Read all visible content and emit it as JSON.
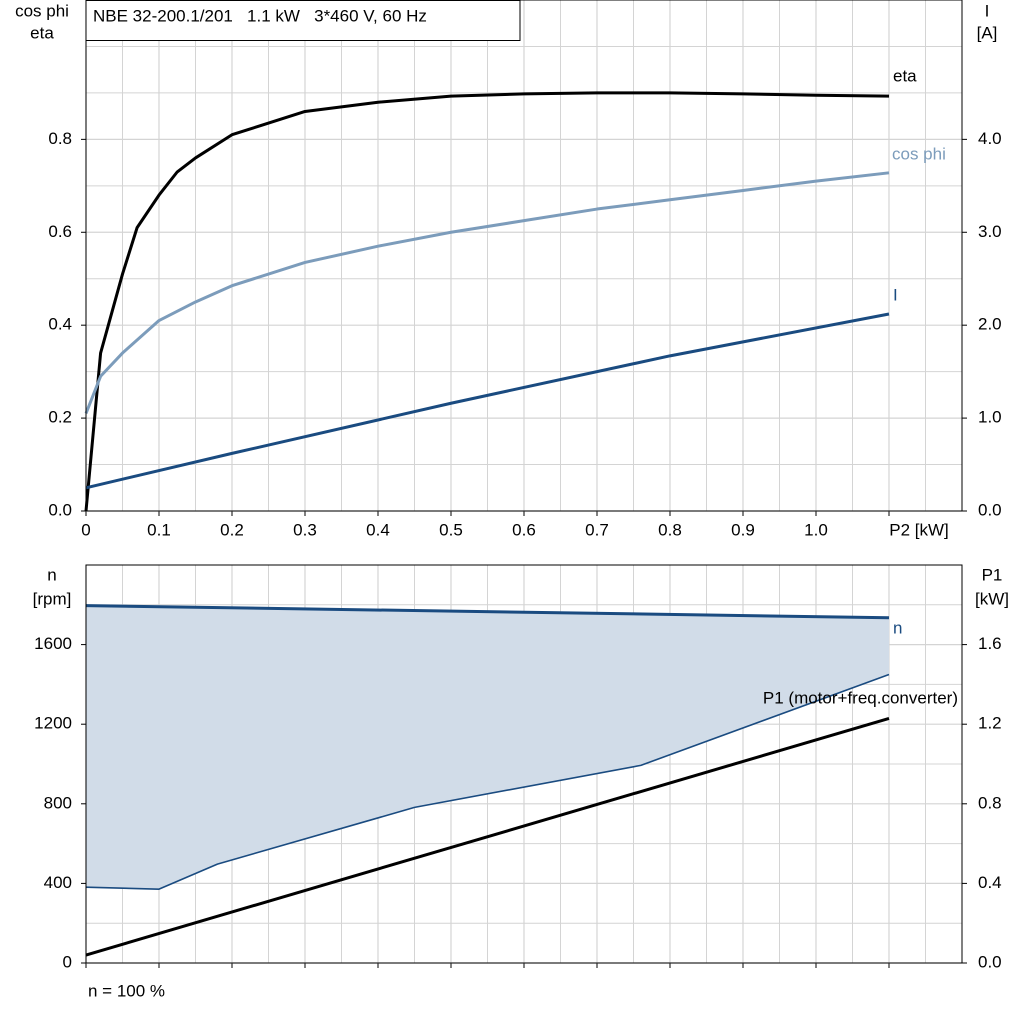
{
  "chart_data": [
    {
      "type": "line",
      "title": "NBE 32-200.1/201   1.1 kW   3*460 V, 60 Hz",
      "ylabel": [
        "cos phi",
        "eta"
      ],
      "y2label": [
        "I",
        "[A]"
      ],
      "xlim": [
        0,
        1.2
      ],
      "ylim": [
        0,
        1.1
      ],
      "y2lim": [
        0,
        5.5
      ],
      "xticks": [
        0,
        0.1,
        0.2,
        0.3,
        0.4,
        0.5,
        0.6,
        0.7,
        0.8,
        0.9,
        {
          "value": 1,
          "label": "1.0"
        },
        {
          "value": 1.1,
          "label": "P2 [kW]"
        }
      ],
      "xtick_labels": true,
      "yticks": [
        {
          "value": 0,
          "label": "0.0"
        },
        0.2,
        0.4,
        0.6,
        0.8
      ],
      "y2ticks": [
        {
          "value": 0,
          "label": "0.0"
        },
        {
          "value": 1,
          "label": "1.0"
        },
        {
          "value": 2,
          "label": "2.0"
        },
        {
          "value": 3,
          "label": "3.0"
        },
        {
          "value": 4,
          "label": "4.0"
        }
      ],
      "xminorticks": [
        0.05,
        0.15,
        0.25,
        0.35,
        0.45,
        0.55,
        0.65,
        0.75,
        0.85,
        0.95,
        1.05,
        1.15
      ],
      "yminorticks": [
        0.1,
        0.3,
        0.5,
        0.7,
        0.9,
        1.0
      ],
      "grid": true,
      "series": [
        {
          "name": "eta",
          "color": "#000000",
          "x": [
            0,
            0.02,
            0.05,
            0.07,
            0.1,
            0.125,
            0.15,
            0.2,
            0.3,
            0.4,
            0.5,
            0.6,
            0.7,
            0.8,
            0.9,
            1.0,
            1.1
          ],
          "values": [
            0,
            0.34,
            0.51,
            0.61,
            0.68,
            0.73,
            0.76,
            0.81,
            0.86,
            0.88,
            0.893,
            0.898,
            0.9,
            0.9,
            0.898,
            0.895,
            0.893
          ]
        },
        {
          "name": "cos phi",
          "color": "#7c9cbb",
          "x": [
            0,
            0.02,
            0.05,
            0.1,
            0.15,
            0.2,
            0.3,
            0.4,
            0.5,
            0.6,
            0.7,
            0.8,
            0.9,
            1.0,
            1.1
          ],
          "values": [
            0.21,
            0.29,
            0.34,
            0.41,
            0.45,
            0.485,
            0.535,
            0.57,
            0.6,
            0.625,
            0.65,
            0.67,
            0.69,
            0.71,
            0.728
          ]
        },
        {
          "name": "I",
          "color": "#1a4b80",
          "axis": "y2",
          "x": [
            0,
            0.2,
            0.5,
            0.8,
            1.1
          ],
          "values": [
            0.25,
            0.62,
            1.16,
            1.67,
            2.12
          ]
        }
      ]
    },
    {
      "type": "line",
      "ylabel": [
        "n",
        "[rpm]"
      ],
      "y2label": [
        "P1",
        "[kW]"
      ],
      "note": "n = 100 %",
      "xlim": [
        0,
        1.2
      ],
      "ylim": [
        0,
        2000
      ],
      "y2lim": [
        0,
        2.0
      ],
      "xticks": [
        0,
        0.1,
        0.2,
        0.3,
        0.4,
        0.5,
        0.6,
        0.7,
        0.8,
        0.9,
        1.0,
        1.1
      ],
      "xtick_labels": false,
      "yticks": [
        0,
        400,
        800,
        1200,
        1600
      ],
      "y2ticks": [
        {
          "value": 0,
          "label": "0.0"
        },
        0.4,
        0.8,
        1.2,
        1.6
      ],
      "xminorticks": [
        0.05,
        0.15,
        0.25,
        0.35,
        0.45,
        0.55,
        0.65,
        0.75,
        0.85,
        0.95,
        1.05,
        1.15
      ],
      "yminorticks": [
        200,
        600,
        1000,
        1400,
        1800
      ],
      "grid": true,
      "fill_between": [
        0,
        1
      ],
      "fill_color": "#d1dce8",
      "series": [
        {
          "name": "n",
          "color": "#1a4b80",
          "x": [
            0,
            1.1
          ],
          "values": [
            1796,
            1735
          ]
        },
        {
          "color": "#1a4b80",
          "x": [
            0,
            0.1,
            0.18,
            0.45,
            0.76,
            1.1
          ],
          "values": [
            381,
            371,
            497,
            782,
            993,
            1450
          ]
        },
        {
          "name": "P1 (motor+freq.converter)",
          "color": "#000000",
          "axis": "y2",
          "x": [
            0,
            1.1
          ],
          "values": [
            0.04,
            1.229
          ]
        }
      ]
    }
  ]
}
